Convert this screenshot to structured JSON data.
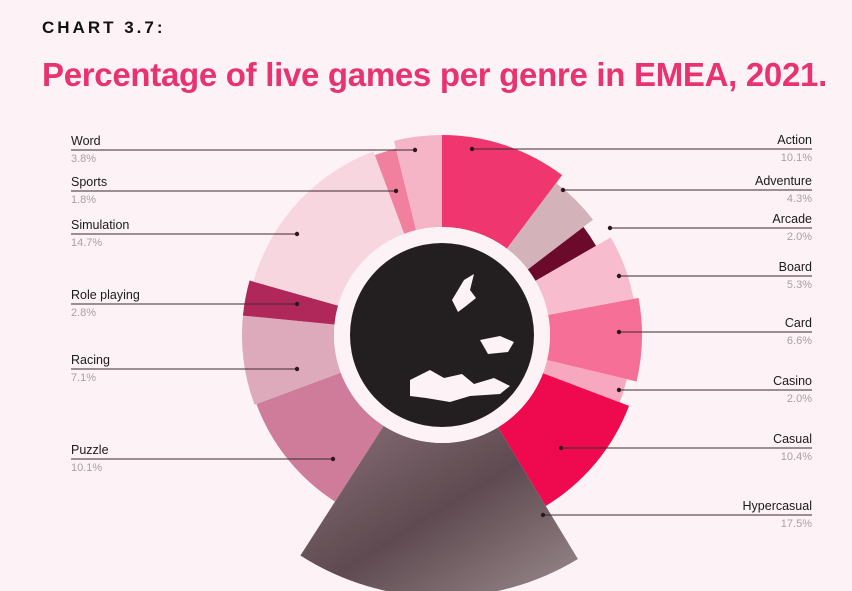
{
  "header": {
    "kicker": "CHART 3.7:",
    "title": "Percentage of live games per genre in EMEA, 2021."
  },
  "chart_data": {
    "type": "pie",
    "variant": "donut",
    "title": "Percentage of live games per genre in EMEA, 2021.",
    "unit": "%",
    "categories": [
      "Action",
      "Adventure",
      "Arcade",
      "Board",
      "Card",
      "Casino",
      "Casual",
      "Hypercasual",
      "Puzzle",
      "Racing",
      "Role playing",
      "Simulation",
      "Sports",
      "Word"
    ],
    "values": [
      10.1,
      4.3,
      2.0,
      5.3,
      6.6,
      2.0,
      10.4,
      17.5,
      10.1,
      7.1,
      2.8,
      14.7,
      1.8,
      3.8
    ],
    "value_labels": [
      "10.1%",
      "4.3%",
      "2.0%",
      "5.3%",
      "6.6%",
      "2.0%",
      "10.4%",
      "17.5%",
      "10.1%",
      "7.1%",
      "2.8%",
      "14.7%",
      "1.8%",
      "3.8%"
    ],
    "colors": [
      "#f0366e",
      "#d4b2ba",
      "#6b0a2a",
      "#f7bccd",
      "#f56f96",
      "#f7a8be",
      "#ef0a4f",
      "#6e5a5f",
      "#cf7c9a",
      "#ddaabb",
      "#b0285a",
      "#f8d6df",
      "#f1809f",
      "#f6b4c7"
    ],
    "center_image": "europe-map"
  }
}
